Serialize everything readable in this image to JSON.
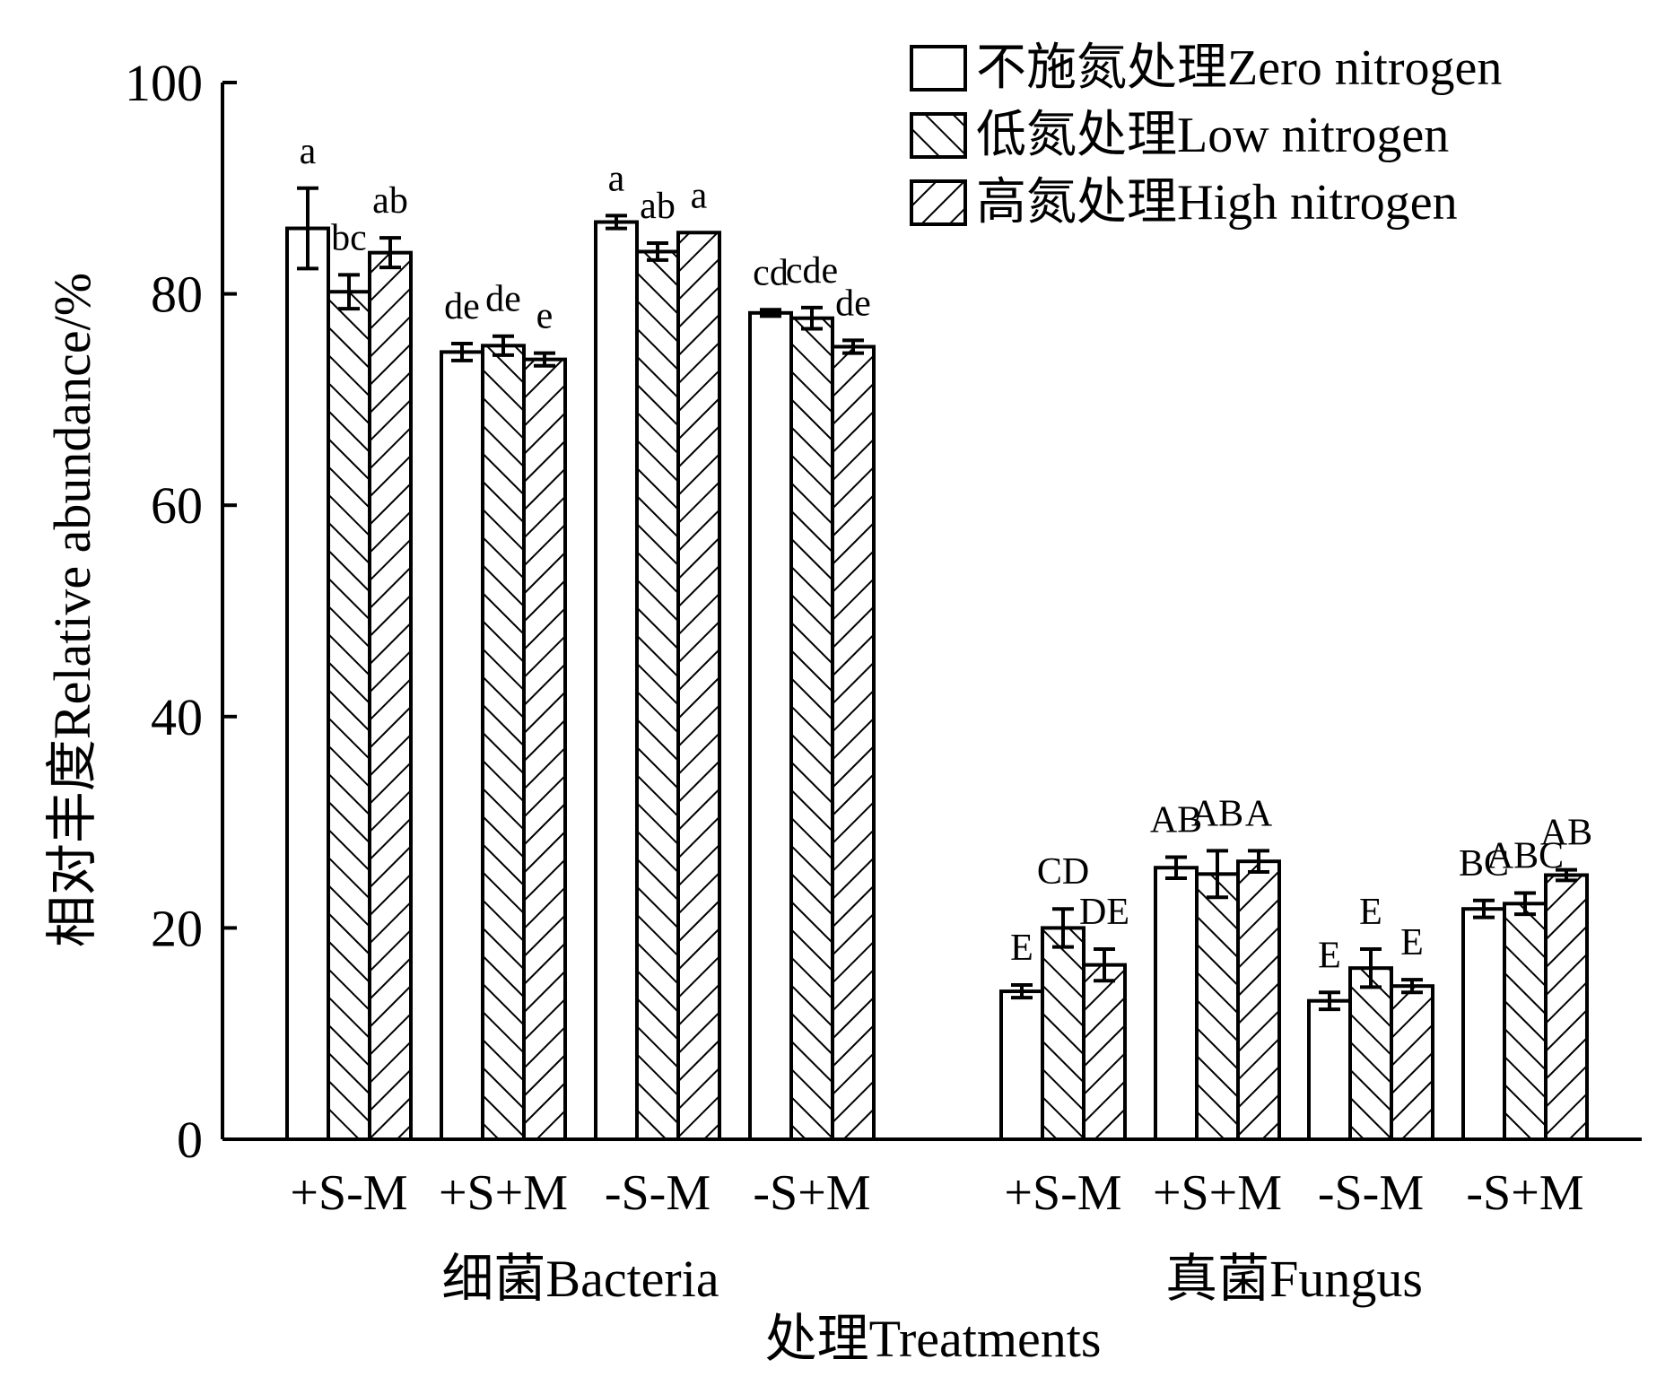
{
  "chart_data": {
    "type": "bar",
    "title": "",
    "ylabel": "相对丰度Relative abundance/%",
    "xlabel": "处理Treatments",
    "ylim": [
      0,
      100
    ],
    "yticks": [
      0,
      20,
      40,
      60,
      80,
      100
    ],
    "legend_position": "top-right",
    "groups": [
      {
        "name": "细菌Bacteria",
        "categories": [
          "+S-M",
          "+S+M",
          "-S-M",
          "-S+M"
        ],
        "series": [
          {
            "name": "不施氮处理Zero nitrogen",
            "pattern": "none",
            "values": [
              86.2,
              74.5,
              86.8,
              78.2
            ],
            "errors": [
              3.8,
              0.8,
              0.6,
              0.3
            ],
            "letters": [
              "a",
              "de",
              "a",
              "cd"
            ]
          },
          {
            "name": "低氮处理Low nitrogen",
            "pattern": "forward-hatch",
            "values": [
              80.2,
              75.1,
              84.0,
              77.7
            ],
            "errors": [
              1.6,
              0.9,
              0.8,
              1.0
            ],
            "letters": [
              "bc",
              "de",
              "ab",
              "cde"
            ]
          },
          {
            "name": "高氮处理High nitrogen",
            "pattern": "back-hatch",
            "values": [
              83.9,
              73.8,
              85.8,
              75.0
            ],
            "errors": [
              1.4,
              0.6,
              0.0,
              0.6
            ],
            "letters": [
              "ab",
              "e",
              "a",
              "de"
            ]
          }
        ]
      },
      {
        "name": "真菌Fungus",
        "categories": [
          "+S-M",
          "+S+M",
          "-S-M",
          "-S+M"
        ],
        "series": [
          {
            "name": "不施氮处理Zero nitrogen",
            "pattern": "none",
            "values": [
              14.0,
              25.7,
              13.1,
              21.8
            ],
            "errors": [
              0.6,
              1.0,
              0.8,
              0.8
            ],
            "letters": [
              "E",
              "AB",
              "E",
              "BC"
            ]
          },
          {
            "name": "低氮处理Low nitrogen",
            "pattern": "forward-hatch",
            "values": [
              20.0,
              25.1,
              16.2,
              22.3
            ],
            "errors": [
              1.8,
              2.2,
              1.8,
              1.0
            ],
            "letters": [
              "CD",
              "AB",
              "E",
              "ABC"
            ]
          },
          {
            "name": "高氮处理High nitrogen",
            "pattern": "back-hatch",
            "values": [
              16.5,
              26.3,
              14.5,
              25.0
            ],
            "errors": [
              1.5,
              1.0,
              0.6,
              0.5
            ],
            "letters": [
              "DE",
              "A",
              "E",
              "AB"
            ]
          }
        ]
      }
    ]
  }
}
